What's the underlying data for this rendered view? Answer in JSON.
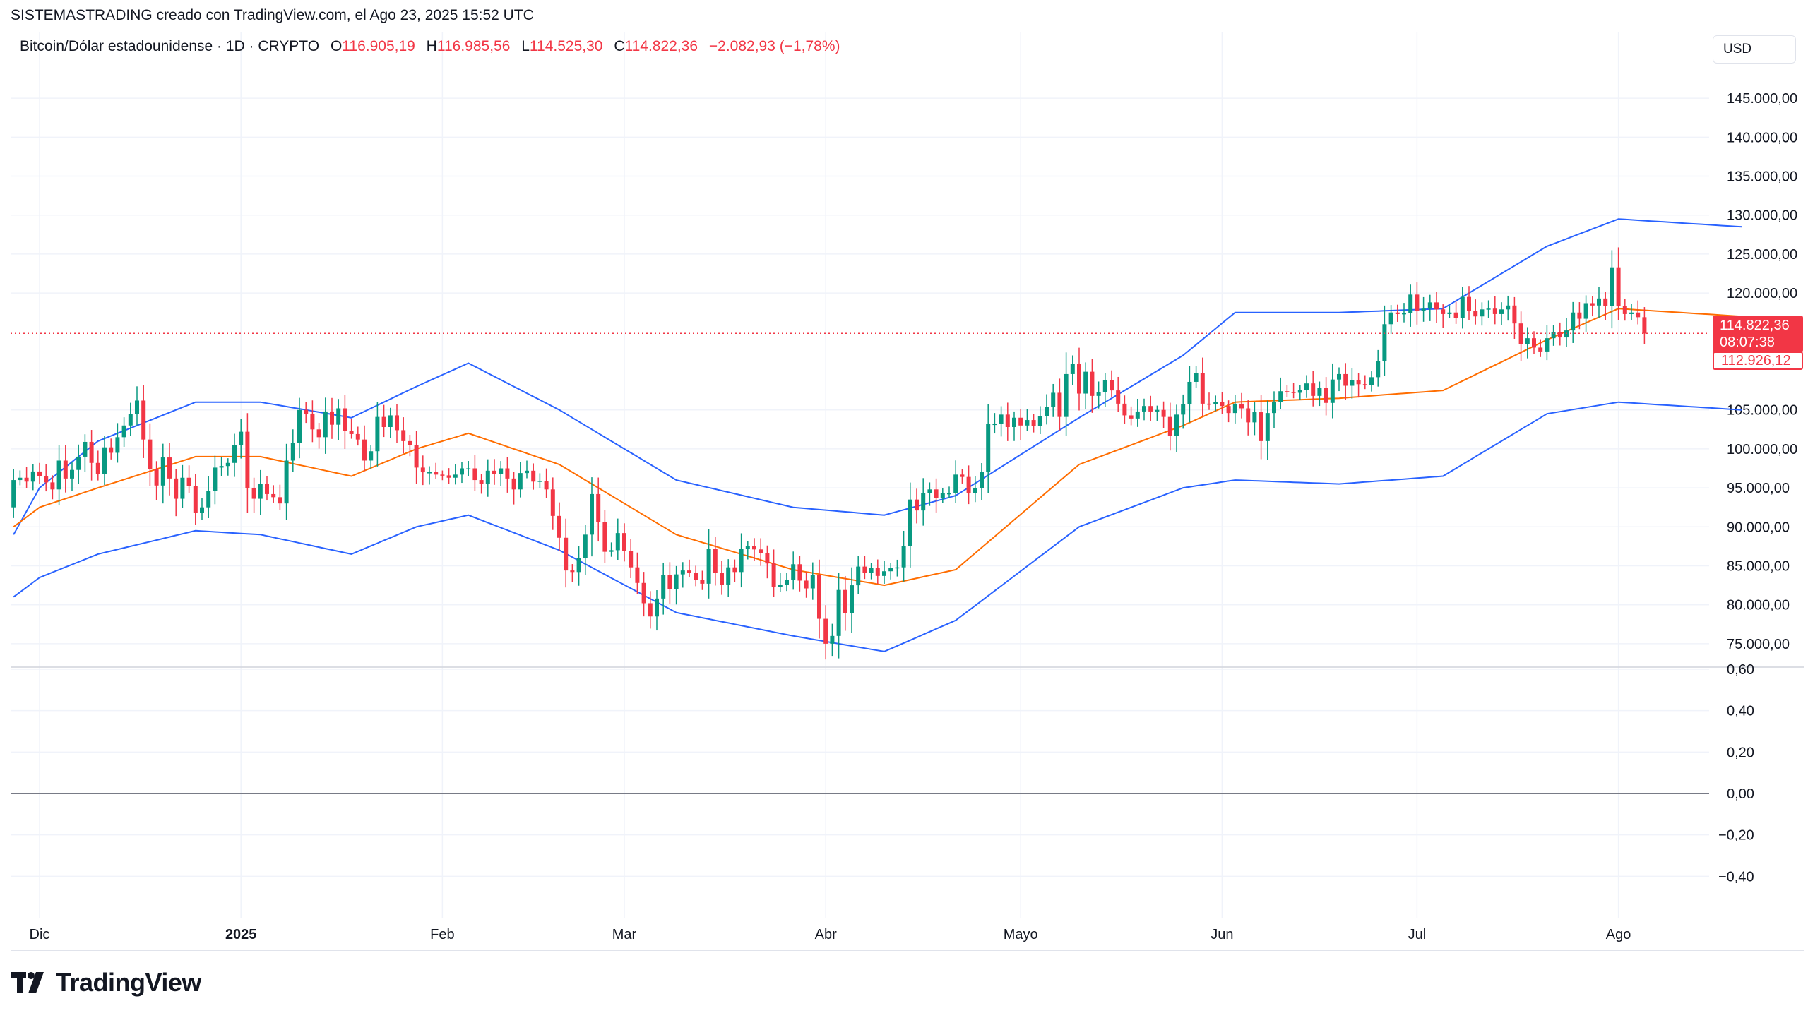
{
  "header": {
    "attribution": "SISTEMASTRADING creado con TradingView.com, el Ago 23, 2025 15:52 UTC"
  },
  "legend": {
    "symbol": "Bitcoin/Dólar estadounidense · 1D · CRYPTO",
    "o_label": "O",
    "o_value": "116.905,19",
    "h_label": "H",
    "h_value": "116.985,56",
    "l_label": "L",
    "l_value": "114.525,30",
    "c_label": "C",
    "c_value": "114.822,36",
    "change": "−2.082,93 (−1,78%)"
  },
  "currency": "USD",
  "price_tags": {
    "last_price": "114.822,36",
    "countdown": "08:07:38",
    "bb_value": "112.926,12"
  },
  "branding": {
    "name": "TradingView"
  },
  "colors": {
    "up": "#089981",
    "down": "#f23645",
    "bb_band": "#2962ff",
    "bb_basis": "#ff6d00",
    "zero_line": "#787b86",
    "grid": "#f0f3fa"
  },
  "chart_data": {
    "type": "candlestick",
    "interval": "1D",
    "price_axis": {
      "labels": [
        "145.000,00",
        "140.000,00",
        "135.000,00",
        "130.000,00",
        "125.000,00",
        "120.000,00",
        "105.000,00",
        "100.000,00",
        "95.000,00",
        "90.000,00",
        "85.000,00",
        "80.000,00",
        "75.000,00"
      ],
      "values": [
        145000,
        140000,
        135000,
        130000,
        125000,
        120000,
        105000,
        100000,
        95000,
        90000,
        85000,
        80000,
        75000
      ],
      "ylim": [
        72000,
        149000
      ]
    },
    "oscillator_axis": {
      "labels": [
        "0,60",
        "0,40",
        "0,20",
        "0,00",
        "−0,20",
        "−0,40"
      ],
      "values": [
        0.6,
        0.4,
        0.2,
        0.0,
        -0.2,
        -0.4
      ],
      "ylim": [
        -0.6,
        0.6
      ]
    },
    "time_axis": {
      "labels": [
        {
          "text": "Dic",
          "index": 0,
          "bold": false
        },
        {
          "text": "2025",
          "index": 31,
          "bold": true
        },
        {
          "text": "Feb",
          "index": 62,
          "bold": false
        },
        {
          "text": "Mar",
          "index": 90,
          "bold": false
        },
        {
          "text": "Abr",
          "index": 121,
          "bold": false
        },
        {
          "text": "Mayo",
          "index": 151,
          "bold": false
        },
        {
          "text": "Jun",
          "index": 182,
          "bold": false
        },
        {
          "text": "Jul",
          "index": 212,
          "bold": false
        },
        {
          "text": "Ago",
          "index": 243,
          "bold": false
        }
      ]
    },
    "first_index": -4,
    "close_start": 92500,
    "closes": [
      96000,
      96300,
      95800,
      97100,
      96500,
      95700,
      94800,
      98500,
      96200,
      97300,
      99000,
      100900,
      98200,
      96800,
      100200,
      99500,
      101500,
      103000,
      104500,
      106200,
      101200,
      97400,
      95300,
      98900,
      96200,
      93600,
      96300,
      95200,
      91800,
      92500,
      94600,
      97600,
      97800,
      98200,
      100500,
      102200,
      95000,
      93600,
      95500,
      94200,
      93800,
      93000,
      98500,
      100800,
      105000,
      104500,
      102500,
      101500,
      104800,
      103100,
      105200,
      102300,
      101900,
      101200,
      98500,
      99700,
      104100,
      102800,
      104300,
      102400,
      101000,
      100500,
      97600,
      97000,
      97000,
      96700,
      96600,
      96300,
      96700,
      97500,
      97500,
      96000,
      95500,
      97200,
      96800,
      97500,
      96200,
      94800,
      96900,
      97200,
      95800,
      95900,
      94800,
      91400,
      88600,
      84400,
      84200,
      86000,
      89000,
      94200,
      90600,
      86800,
      87000,
      89200,
      86900,
      84800,
      82800,
      80200,
      78500,
      80800,
      83800,
      82000,
      83900,
      84400,
      84100,
      83200,
      82700,
      87200,
      84100,
      82600,
      84800,
      84200,
      87200,
      87500,
      87100,
      86600,
      85300,
      82300,
      82600,
      83200,
      85200,
      83100,
      82100,
      83800,
      78200,
      75000,
      76000,
      81900,
      78900,
      82500,
      84900,
      84100,
      84700,
      83700,
      84300,
      84700,
      84800,
      87500,
      93500,
      92100,
      94300,
      94800,
      93700,
      94300,
      94300,
      96700,
      96400,
      94300,
      95000,
      97000,
      103200,
      103200,
      104400,
      102800,
      104000,
      103000,
      103700,
      102900,
      104200,
      105400,
      107200,
      104100,
      109600,
      110900,
      107100,
      109900,
      106800,
      107300,
      108800,
      107500,
      105800,
      104300,
      103900,
      104800,
      105500,
      104800,
      105000,
      104100,
      101700,
      104400,
      105700,
      108600,
      109700,
      105800,
      105700,
      106000,
      105500,
      104600,
      105800,
      105200,
      103400,
      104700,
      101000,
      104600,
      106000,
      107400,
      107300,
      107200,
      107600,
      108400,
      106800,
      107800,
      105900,
      108900,
      109600,
      108100,
      108800,
      108300,
      108200,
      109200,
      111300,
      116000,
      117500,
      117300,
      117400,
      119800,
      117700,
      118000,
      118800,
      117900,
      117300,
      117500,
      116800,
      119500,
      117700,
      117000,
      117900,
      118000,
      117300,
      117900,
      118400,
      116100,
      113400,
      114200,
      113000,
      112500,
      114200,
      115000,
      114300,
      115200,
      117500,
      116700,
      118700,
      118400,
      119300,
      118300,
      123300,
      118300,
      117300,
      117500,
      116900,
      114800
    ],
    "bollinger": {
      "length": 20,
      "upper_anchors": [
        [
          -4,
          89000
        ],
        [
          0,
          95000
        ],
        [
          9,
          101000
        ],
        [
          24,
          106000
        ],
        [
          34,
          106000
        ],
        [
          48,
          104000
        ],
        [
          58,
          108000
        ],
        [
          66,
          111000
        ],
        [
          80,
          105000
        ],
        [
          98,
          96000
        ],
        [
          116,
          92500
        ],
        [
          130,
          91500
        ],
        [
          141,
          94000
        ],
        [
          160,
          104000
        ],
        [
          176,
          112000
        ],
        [
          184,
          117500
        ],
        [
          200,
          117500
        ],
        [
          216,
          118000
        ],
        [
          232,
          126000
        ],
        [
          243,
          129500
        ],
        [
          262,
          128500
        ]
      ],
      "basis_anchors": [
        [
          -4,
          90000
        ],
        [
          0,
          92500
        ],
        [
          9,
          95000
        ],
        [
          24,
          99000
        ],
        [
          34,
          99000
        ],
        [
          48,
          96500
        ],
        [
          58,
          100000
        ],
        [
          66,
          102000
        ],
        [
          80,
          98000
        ],
        [
          98,
          89000
        ],
        [
          116,
          84500
        ],
        [
          130,
          82500
        ],
        [
          141,
          84500
        ],
        [
          160,
          98000
        ],
        [
          176,
          103000
        ],
        [
          184,
          106000
        ],
        [
          200,
          106500
        ],
        [
          216,
          107500
        ],
        [
          232,
          114000
        ],
        [
          243,
          118000
        ],
        [
          262,
          117000
        ]
      ],
      "lower_anchors": [
        [
          -4,
          81000
        ],
        [
          0,
          83500
        ],
        [
          9,
          86500
        ],
        [
          24,
          89500
        ],
        [
          34,
          89000
        ],
        [
          48,
          86500
        ],
        [
          58,
          90000
        ],
        [
          66,
          91500
        ],
        [
          80,
          87000
        ],
        [
          98,
          79000
        ],
        [
          116,
          76000
        ],
        [
          130,
          74000
        ],
        [
          141,
          78000
        ],
        [
          160,
          90000
        ],
        [
          176,
          95000
        ],
        [
          184,
          96000
        ],
        [
          200,
          95500
        ],
        [
          216,
          96500
        ],
        [
          232,
          104500
        ],
        [
          243,
          106000
        ],
        [
          262,
          105000
        ]
      ]
    },
    "last_price_line": 114822.36
  }
}
